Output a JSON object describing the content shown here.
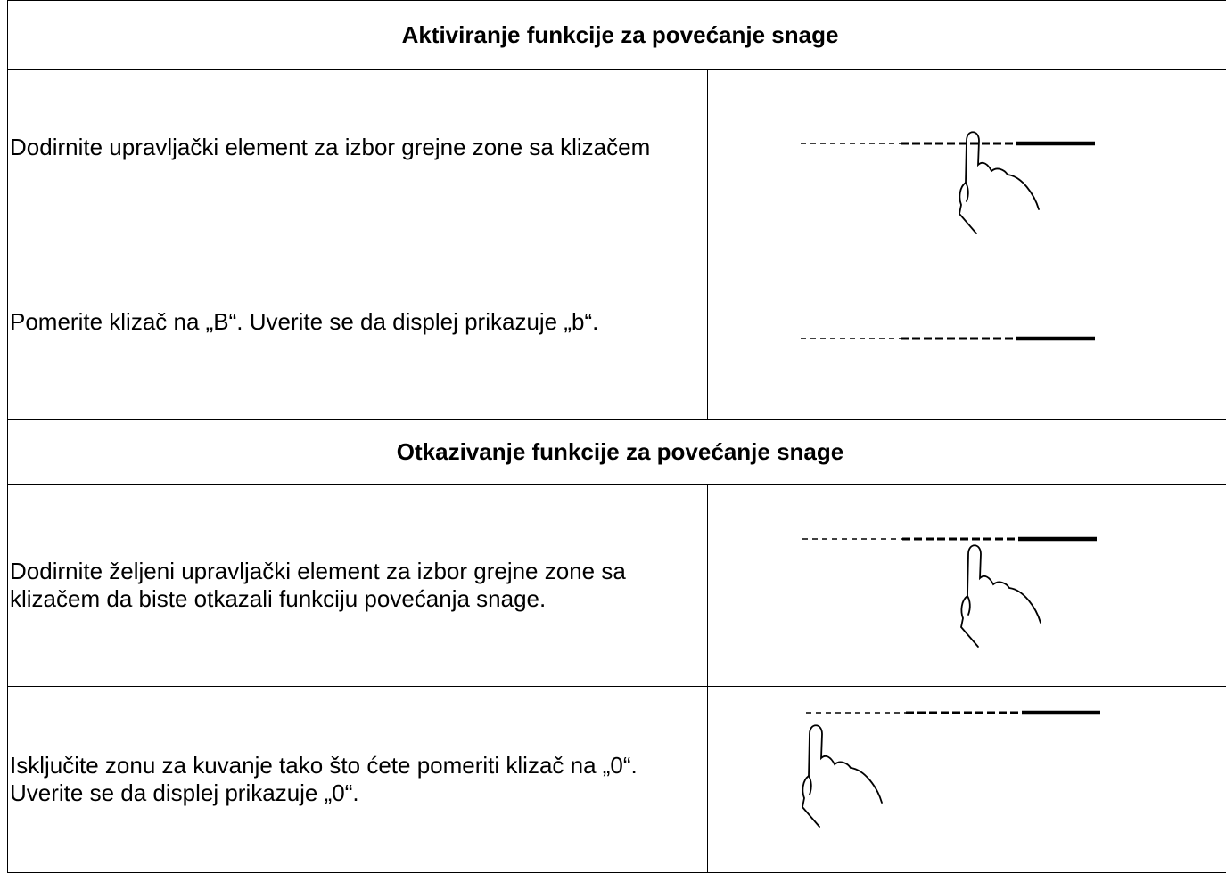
{
  "sections": [
    {
      "title": "Aktiviranje funkcije za povećanje snage",
      "rows": [
        "Dodirnite upravljački element za izbor grejne zone sa klizačem",
        "Pomerite klizač na „B“. Uverite se da displej prikazuje „b“."
      ]
    },
    {
      "title": "Otkazivanje funkcije za povećanje snage",
      "rows": [
        "Dodirnite željeni upravljački element za izbor grejne zone sa klizačem da biste otkazali funkciju povećanja snage.",
        "Isključite zonu za kuvanje tako što ćete pomeriti klizač na „0“. Uverite se da displej prikazuje „0“."
      ]
    }
  ]
}
